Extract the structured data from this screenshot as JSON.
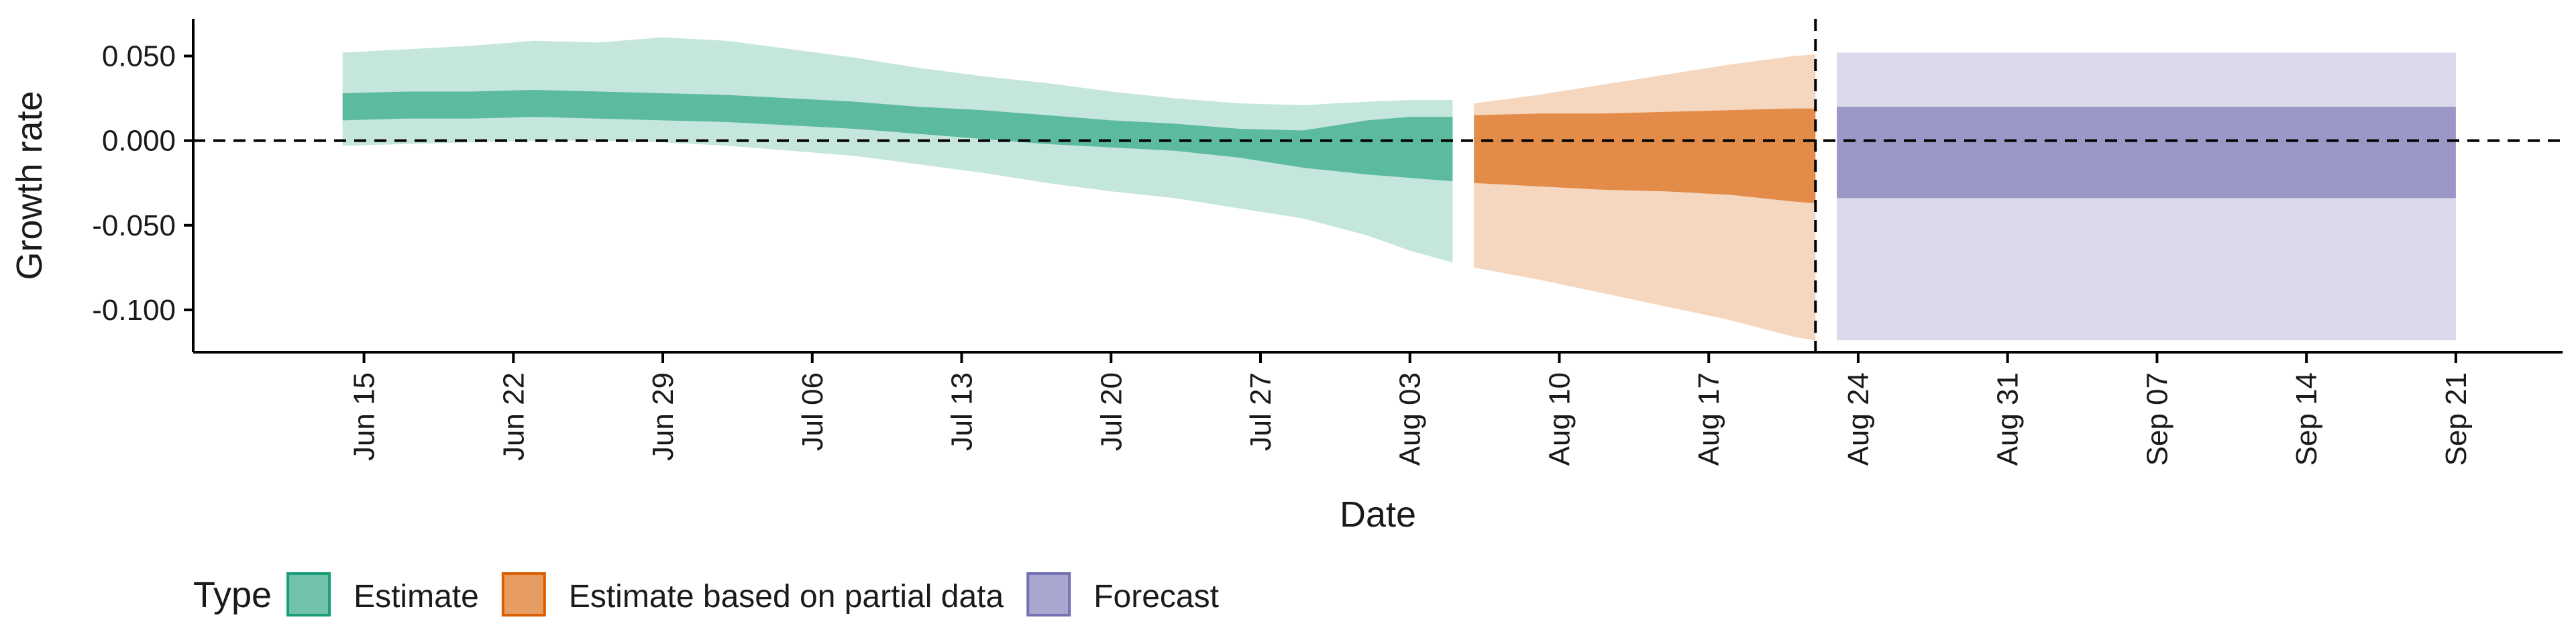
{
  "chart_data": {
    "type": "area",
    "xlabel": "Date",
    "ylabel": "Growth rate",
    "ylim": [
      -0.125,
      0.072
    ],
    "y_ticks": [
      {
        "value": 0.05,
        "label": "0.050"
      },
      {
        "value": 0.0,
        "label": "0.000"
      },
      {
        "value": -0.05,
        "label": "-0.050"
      },
      {
        "value": -0.1,
        "label": "-0.100"
      }
    ],
    "x_domain": {
      "start": "2020-06-07",
      "end": "2020-09-26"
    },
    "x_ticks": [
      {
        "date": "2020-06-15",
        "label": "Jun 15"
      },
      {
        "date": "2020-06-22",
        "label": "Jun 22"
      },
      {
        "date": "2020-06-29",
        "label": "Jun 29"
      },
      {
        "date": "2020-07-06",
        "label": "Jul 06"
      },
      {
        "date": "2020-07-13",
        "label": "Jul 13"
      },
      {
        "date": "2020-07-20",
        "label": "Jul 20"
      },
      {
        "date": "2020-07-27",
        "label": "Jul 27"
      },
      {
        "date": "2020-08-03",
        "label": "Aug 03"
      },
      {
        "date": "2020-08-10",
        "label": "Aug 10"
      },
      {
        "date": "2020-08-17",
        "label": "Aug 17"
      },
      {
        "date": "2020-08-24",
        "label": "Aug 24"
      },
      {
        "date": "2020-08-31",
        "label": "Aug 31"
      },
      {
        "date": "2020-09-07",
        "label": "Sep 07"
      },
      {
        "date": "2020-09-14",
        "label": "Sep 14"
      },
      {
        "date": "2020-09-21",
        "label": "Sep 21"
      }
    ],
    "reference_lines": {
      "horizontal_y": 0.0,
      "vertical_date": "2020-08-22"
    },
    "legend": {
      "title": "Type",
      "position": "bottom-left"
    },
    "series": [
      {
        "name": "Estimate",
        "color": "#1b9e77",
        "points": [
          {
            "date": "2020-06-14",
            "lo90": -0.003,
            "lo50": 0.012,
            "hi50": 0.028,
            "hi90": 0.052
          },
          {
            "date": "2020-06-17",
            "lo90": -0.002,
            "lo50": 0.013,
            "hi50": 0.029,
            "hi90": 0.054
          },
          {
            "date": "2020-06-20",
            "lo90": -0.001,
            "lo50": 0.013,
            "hi50": 0.029,
            "hi90": 0.056
          },
          {
            "date": "2020-06-23",
            "lo90": 0.0,
            "lo50": 0.014,
            "hi50": 0.03,
            "hi90": 0.059
          },
          {
            "date": "2020-06-26",
            "lo90": 0.0,
            "lo50": 0.013,
            "hi50": 0.029,
            "hi90": 0.058
          },
          {
            "date": "2020-06-29",
            "lo90": -0.001,
            "lo50": 0.012,
            "hi50": 0.028,
            "hi90": 0.061
          },
          {
            "date": "2020-07-02",
            "lo90": -0.003,
            "lo50": 0.011,
            "hi50": 0.027,
            "hi90": 0.059
          },
          {
            "date": "2020-07-05",
            "lo90": -0.006,
            "lo50": 0.009,
            "hi50": 0.025,
            "hi90": 0.054
          },
          {
            "date": "2020-07-08",
            "lo90": -0.009,
            "lo50": 0.007,
            "hi50": 0.023,
            "hi90": 0.049
          },
          {
            "date": "2020-07-11",
            "lo90": -0.014,
            "lo50": 0.004,
            "hi50": 0.02,
            "hi90": 0.043
          },
          {
            "date": "2020-07-14",
            "lo90": -0.019,
            "lo50": 0.001,
            "hi50": 0.018,
            "hi90": 0.038
          },
          {
            "date": "2020-07-17",
            "lo90": -0.025,
            "lo50": -0.002,
            "hi50": 0.015,
            "hi90": 0.034
          },
          {
            "date": "2020-07-20",
            "lo90": -0.03,
            "lo50": -0.004,
            "hi50": 0.012,
            "hi90": 0.029
          },
          {
            "date": "2020-07-23",
            "lo90": -0.034,
            "lo50": -0.006,
            "hi50": 0.01,
            "hi90": 0.025
          },
          {
            "date": "2020-07-26",
            "lo90": -0.04,
            "lo50": -0.01,
            "hi50": 0.007,
            "hi90": 0.022
          },
          {
            "date": "2020-07-29",
            "lo90": -0.046,
            "lo50": -0.016,
            "hi50": 0.006,
            "hi90": 0.021
          },
          {
            "date": "2020-08-01",
            "lo90": -0.056,
            "lo50": -0.02,
            "hi50": 0.012,
            "hi90": 0.023
          },
          {
            "date": "2020-08-03",
            "lo90": -0.065,
            "lo50": -0.022,
            "hi50": 0.014,
            "hi90": 0.024
          },
          {
            "date": "2020-08-05",
            "lo90": -0.072,
            "lo50": -0.024,
            "hi50": 0.014,
            "hi90": 0.024
          }
        ]
      },
      {
        "name": "Estimate based on partial data",
        "color": "#d95f02",
        "points": [
          {
            "date": "2020-08-06",
            "lo90": -0.075,
            "lo50": -0.025,
            "hi50": 0.015,
            "hi90": 0.022
          },
          {
            "date": "2020-08-09",
            "lo90": -0.082,
            "lo50": -0.027,
            "hi50": 0.016,
            "hi90": 0.027
          },
          {
            "date": "2020-08-12",
            "lo90": -0.09,
            "lo50": -0.029,
            "hi50": 0.016,
            "hi90": 0.033
          },
          {
            "date": "2020-08-15",
            "lo90": -0.098,
            "lo50": -0.03,
            "hi50": 0.017,
            "hi90": 0.039
          },
          {
            "date": "2020-08-18",
            "lo90": -0.106,
            "lo50": -0.032,
            "hi50": 0.018,
            "hi90": 0.045
          },
          {
            "date": "2020-08-21",
            "lo90": -0.116,
            "lo50": -0.036,
            "hi50": 0.019,
            "hi90": 0.05
          },
          {
            "date": "2020-08-22",
            "lo90": -0.118,
            "lo50": -0.037,
            "hi50": 0.019,
            "hi90": 0.051
          }
        ]
      },
      {
        "name": "Forecast",
        "color": "#7570b3",
        "points": [
          {
            "date": "2020-08-23",
            "lo90": -0.118,
            "lo50": -0.034,
            "hi50": 0.02,
            "hi90": 0.052
          },
          {
            "date": "2020-09-21",
            "lo90": -0.118,
            "lo50": -0.034,
            "hi50": 0.02,
            "hi90": 0.052
          }
        ]
      }
    ]
  }
}
